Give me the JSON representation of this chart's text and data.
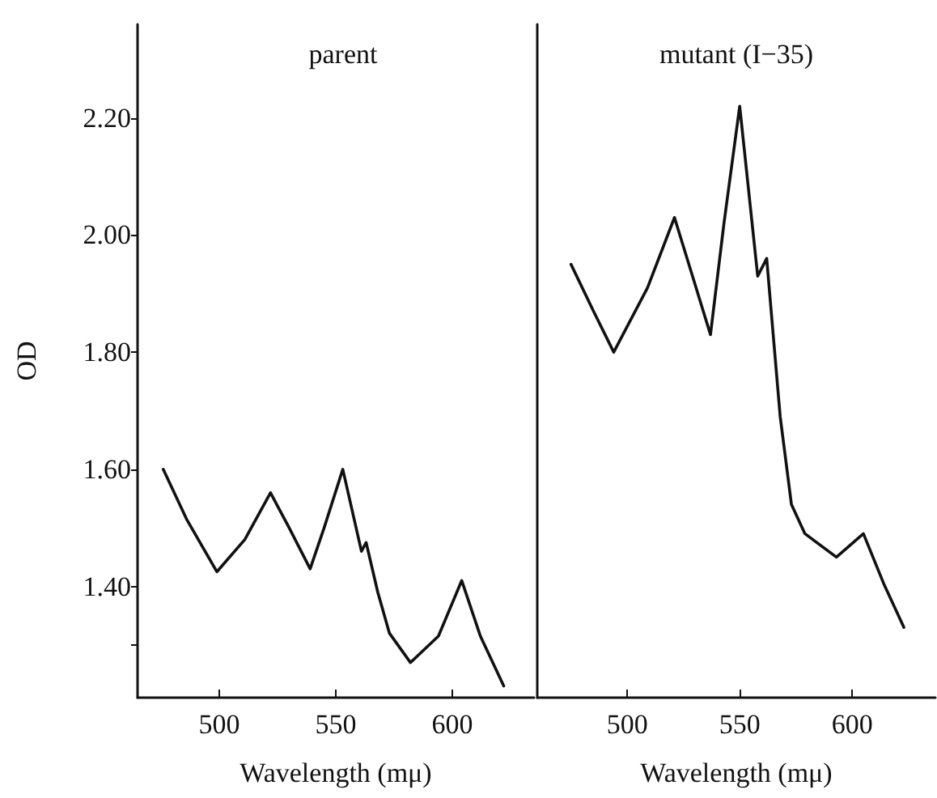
{
  "chart_data": [
    {
      "type": "line",
      "title": "parent",
      "xlabel": "Wavelength (mμ)",
      "ylabel": "OD",
      "xlim": [
        465,
        635
      ],
      "xticks": [
        500,
        550,
        600
      ],
      "ylim": [
        1.21,
        2.36
      ],
      "yticks": [
        {
          "value": 1.3,
          "label": null
        },
        {
          "value": 1.4,
          "label": "1.40"
        },
        {
          "value": 1.6,
          "label": "1.60"
        },
        {
          "value": 1.8,
          "label": "1.80"
        },
        {
          "value": 2.0,
          "label": "2.00"
        },
        {
          "value": 2.2,
          "label": "2.20"
        }
      ],
      "grid": false,
      "marker": "none",
      "line_style": "solid",
      "series": [
        {
          "color": "#111111",
          "x": [
            476,
            486,
            499,
            511,
            522,
            530,
            539,
            545,
            553,
            561,
            563,
            568,
            573,
            582,
            594,
            604,
            612,
            622
          ],
          "values": [
            1.6,
            1.515,
            1.425,
            1.48,
            1.56,
            1.5,
            1.43,
            1.5,
            1.6,
            1.46,
            1.475,
            1.39,
            1.32,
            1.27,
            1.315,
            1.41,
            1.315,
            1.23
          ]
        }
      ]
    },
    {
      "type": "line",
      "title": "mutant (I−35)",
      "xlabel": "Wavelength (mμ)",
      "xlim": [
        460,
        637
      ],
      "xticks": [
        500,
        550,
        600
      ],
      "ylim": [
        1.21,
        2.36
      ],
      "tick_labels": "x",
      "grid": false,
      "marker": "none",
      "line_style": "solid",
      "series": [
        {
          "color": "#111111",
          "x": [
            475,
            485,
            494,
            509,
            521,
            529,
            537,
            543,
            550,
            558,
            562,
            568,
            573,
            579,
            593,
            605,
            614,
            623
          ],
          "values": [
            1.95,
            1.87,
            1.8,
            1.91,
            2.03,
            1.93,
            1.83,
            2.02,
            2.22,
            1.93,
            1.96,
            1.69,
            1.54,
            1.49,
            1.45,
            1.49,
            1.405,
            1.33
          ]
        }
      ]
    }
  ]
}
